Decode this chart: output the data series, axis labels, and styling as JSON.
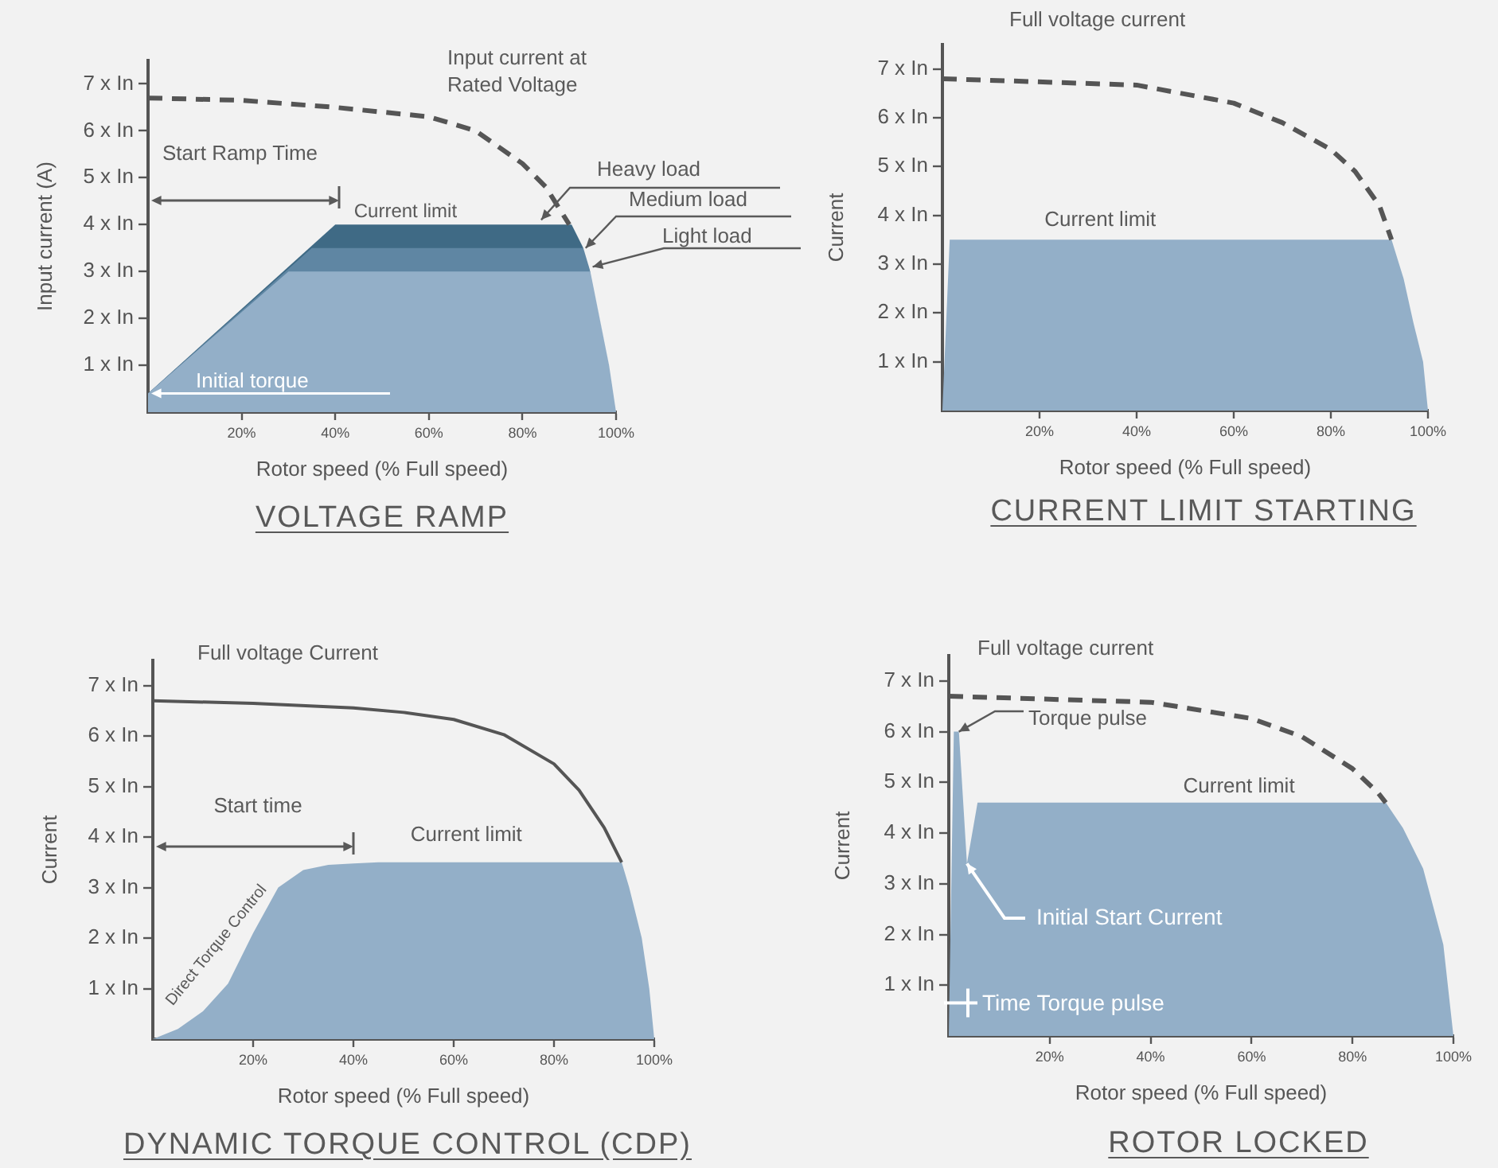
{
  "chart_data": [
    {
      "type": "area",
      "title": "VOLTAGE RAMP",
      "xlabel": "Rotor speed (% Full speed)",
      "ylabel": "Input current (A)",
      "xlim": [
        0,
        100
      ],
      "ylim": [
        0,
        7.5
      ],
      "xticks": [
        {
          "value": 20,
          "label": "20%"
        },
        {
          "value": 40,
          "label": "40%"
        },
        {
          "value": 60,
          "label": "60%"
        },
        {
          "value": 80,
          "label": "80%"
        },
        {
          "value": 100,
          "label": "100%"
        }
      ],
      "yticks": [
        {
          "value": 1,
          "label": "1 x In"
        },
        {
          "value": 2,
          "label": "2 x In"
        },
        {
          "value": 3,
          "label": "3 x In"
        },
        {
          "value": 4,
          "label": "4 x In"
        },
        {
          "value": 5,
          "label": "5 x In"
        },
        {
          "value": 6,
          "label": "6 x In"
        },
        {
          "value": 7,
          "label": "7 x In"
        }
      ],
      "marker": "none",
      "series": [
        {
          "type": "area",
          "color": "#3f6a85",
          "x": [
            0,
            40,
            90.5,
            93
          ],
          "values": [
            0.4,
            4,
            4,
            3.5
          ]
        },
        {
          "type": "area",
          "color": "#5f86a3",
          "x": [
            0,
            35,
            93,
            94.5
          ],
          "values": [
            0.4,
            3.5,
            3.5,
            3
          ]
        },
        {
          "type": "area",
          "color": "#93afc8",
          "x": [
            0,
            30,
            94.5,
            96.5,
            98.5,
            100
          ],
          "values": [
            0.4,
            3,
            3,
            2,
            1,
            0
          ]
        },
        {
          "type": "line",
          "line_style": "dashed",
          "color": "#555555",
          "x": [
            0,
            20,
            40,
            60,
            70,
            80,
            85,
            90
          ],
          "values": [
            6.7,
            6.65,
            6.5,
            6.3,
            6.0,
            5.3,
            4.8,
            4.0
          ]
        }
      ],
      "annotations": [
        "Input current at Rated Voltage",
        "Start Ramp Time",
        {
          "text": "Current limit",
          "x": 55,
          "y": 4
        },
        {
          "text": "Heavy load",
          "x": 84,
          "y": 4.1
        },
        {
          "text": "Medium load",
          "x": 93.5,
          "y": 3.5
        },
        {
          "text": "Light load",
          "x": 95,
          "y": 3.1
        },
        {
          "text": "Initial torque",
          "x": 0,
          "y": 0.4
        }
      ]
    },
    {
      "type": "area",
      "title": "CURRENT LIMIT STARTING",
      "xlabel": "Rotor speed (% Full speed)",
      "ylabel": "Current",
      "xlim": [
        0,
        100
      ],
      "ylim": [
        0,
        7.5
      ],
      "xticks": [
        {
          "value": 20,
          "label": "20%"
        },
        {
          "value": 40,
          "label": "40%"
        },
        {
          "value": 60,
          "label": "60%"
        },
        {
          "value": 80,
          "label": "80%"
        },
        {
          "value": 100,
          "label": "100%"
        }
      ],
      "yticks": [
        {
          "value": 1,
          "label": "1 x In"
        },
        {
          "value": 2,
          "label": "2 x In"
        },
        {
          "value": 3,
          "label": "3 x In"
        },
        {
          "value": 4,
          "label": "4 x In"
        },
        {
          "value": 5,
          "label": "5 x In"
        },
        {
          "value": 6,
          "label": "6 x In"
        },
        {
          "value": 7,
          "label": "7 x In"
        }
      ],
      "marker": "none",
      "series": [
        {
          "type": "area",
          "color": "#93afc8",
          "x": [
            0,
            1.5,
            92.5,
            95,
            97,
            99,
            100
          ],
          "values": [
            0,
            3.5,
            3.5,
            2.7,
            1.8,
            1,
            0
          ]
        },
        {
          "type": "line",
          "line_style": "dashed",
          "color": "#555555",
          "x": [
            0,
            40,
            60,
            70,
            80,
            85,
            90,
            92.5
          ],
          "values": [
            6.8,
            6.67,
            6.3,
            5.9,
            5.35,
            4.9,
            4.2,
            3.5
          ]
        }
      ],
      "annotations": [
        "Full voltage current",
        {
          "text": "Current limit",
          "x": 32.5,
          "y": 3.5
        }
      ]
    },
    {
      "type": "area",
      "title": "DYNAMIC TORQUE CONTROL (CDP)",
      "xlabel": "Rotor speed (% Full speed)",
      "ylabel": "Current",
      "xlim": [
        0,
        100
      ],
      "ylim": [
        0,
        7.5
      ],
      "xticks": [
        {
          "value": 20,
          "label": "20%"
        },
        {
          "value": 40,
          "label": "40%"
        },
        {
          "value": 60,
          "label": "60%"
        },
        {
          "value": 80,
          "label": "80%"
        },
        {
          "value": 100,
          "label": "100%"
        }
      ],
      "yticks": [
        {
          "value": 1,
          "label": "1 x In"
        },
        {
          "value": 2,
          "label": "2 x In"
        },
        {
          "value": 3,
          "label": "3 x In"
        },
        {
          "value": 4,
          "label": "4 x In"
        },
        {
          "value": 5,
          "label": "5 x In"
        },
        {
          "value": 6,
          "label": "6 x In"
        },
        {
          "value": 7,
          "label": "7 x In"
        }
      ],
      "marker": "none",
      "series": [
        {
          "type": "area",
          "color": "#93afc8",
          "x": [
            0,
            5,
            10,
            15,
            20,
            25,
            30,
            35,
            40,
            45,
            93.5,
            95,
            97.5,
            99,
            100
          ],
          "values": [
            0,
            0.2,
            0.55,
            1.1,
            2.1,
            3.0,
            3.35,
            3.45,
            3.48,
            3.5,
            3.5,
            3.0,
            2.0,
            1.0,
            0
          ]
        },
        {
          "type": "line",
          "line_style": "solid",
          "color": "#555555",
          "x": [
            0,
            20,
            40,
            50,
            60,
            70,
            80,
            85,
            90,
            93.5
          ],
          "values": [
            6.7,
            6.65,
            6.56,
            6.47,
            6.33,
            6.03,
            5.45,
            4.93,
            4.19,
            3.5
          ]
        }
      ],
      "annotations": [
        "Full voltage Current",
        "Start time",
        {
          "text": "Current limit",
          "x": 62.5,
          "y": 3.5
        },
        "Direct Torque Control"
      ]
    },
    {
      "type": "area",
      "title": "ROTOR LOCKED",
      "xlabel": "Rotor speed (% Full speed)",
      "ylabel": "Current",
      "xlim": [
        0,
        100
      ],
      "ylim": [
        0,
        7.5
      ],
      "xticks": [
        {
          "value": 20,
          "label": "20%"
        },
        {
          "value": 40,
          "label": "40%"
        },
        {
          "value": 60,
          "label": "60%"
        },
        {
          "value": 80,
          "label": "80%"
        },
        {
          "value": 100,
          "label": "100%"
        }
      ],
      "yticks": [
        {
          "value": 1,
          "label": "1 x In"
        },
        {
          "value": 2,
          "label": "2 x In"
        },
        {
          "value": 3,
          "label": "3 x In"
        },
        {
          "value": 4,
          "label": "4 x In"
        },
        {
          "value": 5,
          "label": "5 x In"
        },
        {
          "value": 6,
          "label": "6 x In"
        },
        {
          "value": 7,
          "label": "7 x In"
        }
      ],
      "marker": "none",
      "series": [
        {
          "type": "area",
          "color": "#93afc8",
          "x": [
            0,
            1,
            2,
            3.6,
            5.7,
            86.6,
            90,
            94,
            98,
            100
          ],
          "values": [
            0,
            6,
            6,
            3.4,
            4.6,
            4.6,
            4.1,
            3.3,
            1.8,
            0
          ]
        },
        {
          "type": "line",
          "line_style": "dashed",
          "color": "#555555",
          "x": [
            0,
            40,
            60,
            70,
            80,
            85,
            86.6
          ],
          "values": [
            6.7,
            6.58,
            6.26,
            5.9,
            5.27,
            4.8,
            4.6
          ]
        }
      ],
      "annotations": [
        "Full voltage current",
        {
          "text": "Torque pulse",
          "x": 2,
          "y": 6
        },
        {
          "text": "Initial Start Current",
          "x": 3.6,
          "y": 3.4
        },
        {
          "text": "Time Torque pulse",
          "x": 0,
          "y": 0.65
        },
        {
          "text": "Current limit",
          "x": 57.5,
          "y": 4.6
        }
      ]
    }
  ]
}
